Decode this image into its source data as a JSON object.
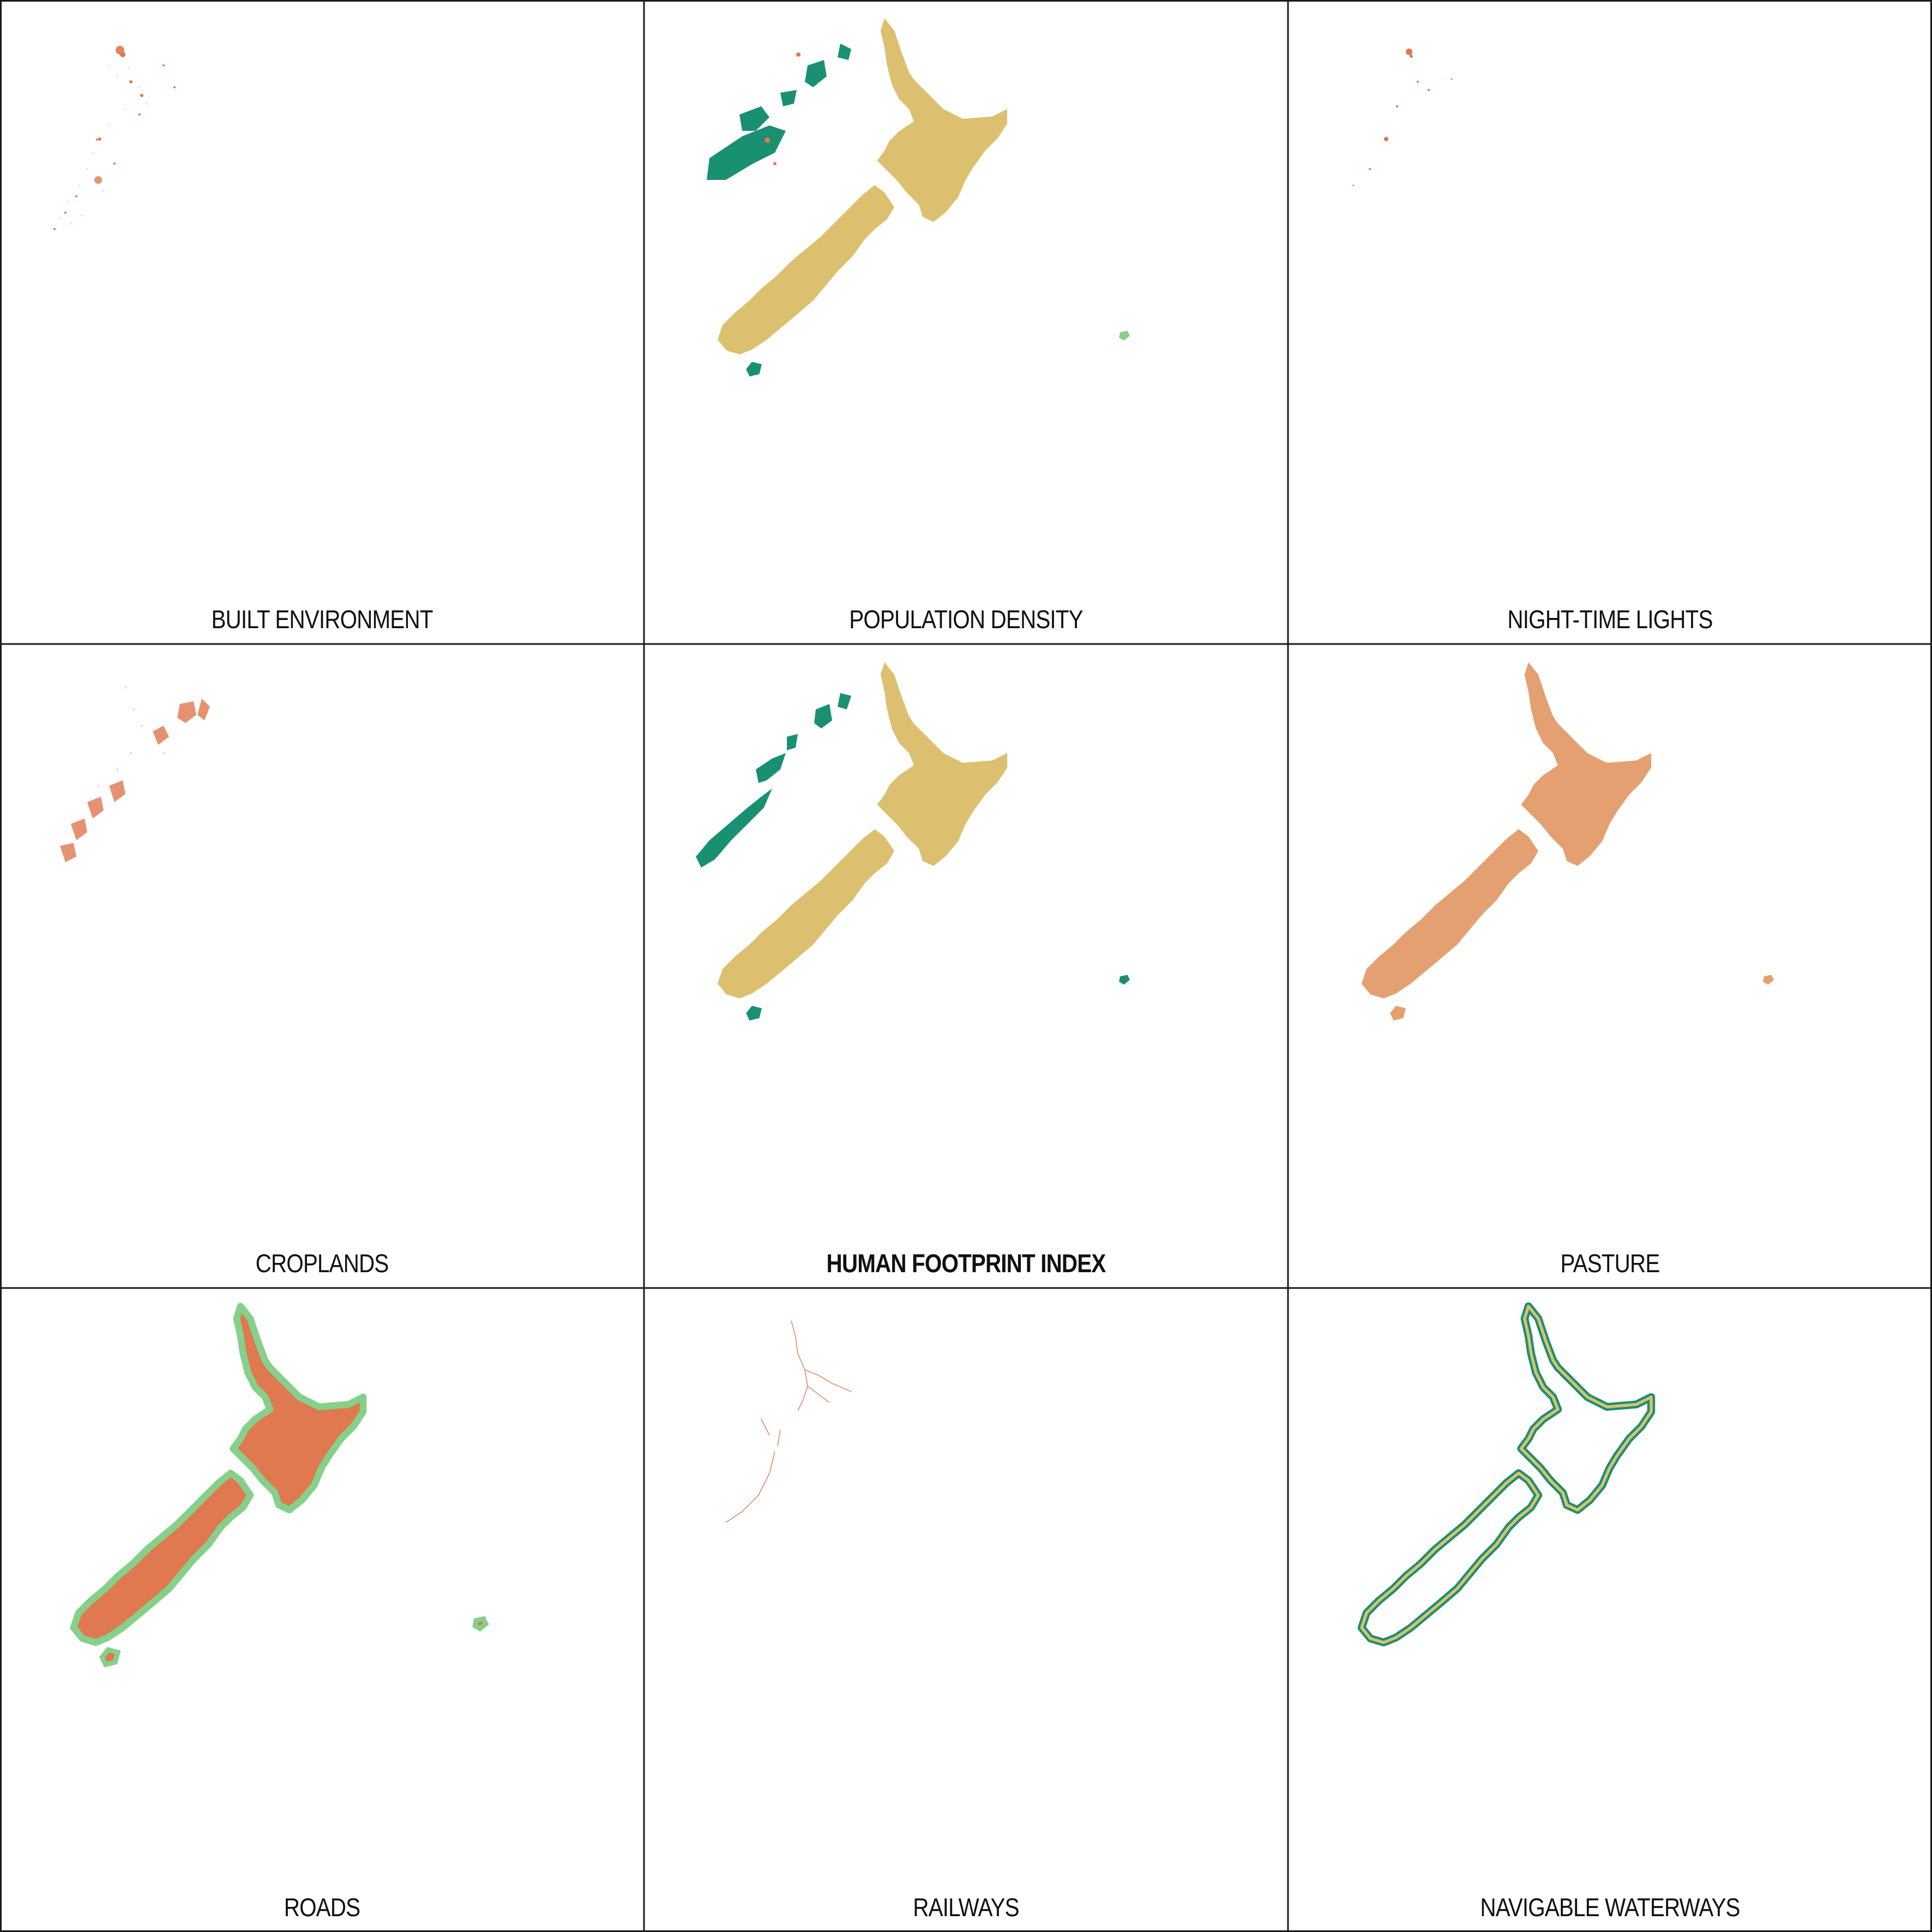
{
  "colors": {
    "high": "#e07850",
    "mid": "#dcc070",
    "light": "#f0d8a0",
    "low": "#1a9072",
    "pasture": "#e4a070",
    "buffer": "#86d08a",
    "grid_line": "#1a1a1a"
  },
  "panels": [
    {
      "key": "built",
      "label": "BUILT ENVIRONMENT",
      "bold": false
    },
    {
      "key": "population",
      "label": "POPULATION DENSITY",
      "bold": false
    },
    {
      "key": "lights",
      "label": "NIGHT-TIME LIGHTS",
      "bold": false
    },
    {
      "key": "croplands",
      "label": "CROPLANDS",
      "bold": false
    },
    {
      "key": "hfi",
      "label": "HUMAN FOOTPRINT INDEX",
      "bold": true
    },
    {
      "key": "pasture",
      "label": "PASTURE",
      "bold": false
    },
    {
      "key": "roads",
      "label": "ROADS",
      "bold": false
    },
    {
      "key": "railways",
      "label": "RAILWAYS",
      "bold": false
    },
    {
      "key": "waterways",
      "label": "NAVIGABLE WATERWAYS",
      "bold": false
    }
  ]
}
